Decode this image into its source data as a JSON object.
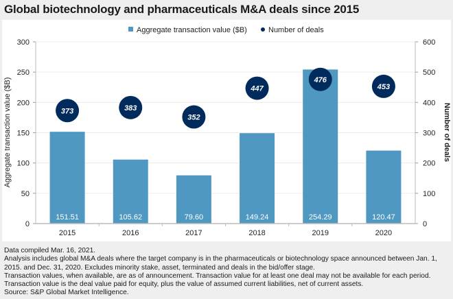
{
  "title": "Global biotechnology and pharmaceuticals M&A deals since 2015",
  "chart_data": {
    "type": "bar",
    "title": "Global biotechnology and pharmaceuticals M&A deals since 2015",
    "categories": [
      "2015",
      "2016",
      "2017",
      "2018",
      "2019",
      "2020"
    ],
    "series": [
      {
        "name": "Aggregate transaction value ($B)",
        "kind": "bar",
        "axis": "left",
        "color": "#4f98c2",
        "values": [
          151.51,
          105.62,
          79.6,
          149.24,
          254.29,
          120.47
        ],
        "labels": [
          "151.51",
          "105.62",
          "79.60",
          "149.24",
          "254.29",
          "120.47"
        ]
      },
      {
        "name": "Number of deals",
        "kind": "scatter",
        "axis": "right",
        "color": "#002b5c",
        "values": [
          373,
          383,
          352,
          447,
          476,
          453
        ],
        "labels": [
          "373",
          "383",
          "352",
          "447",
          "476",
          "453"
        ]
      }
    ],
    "ylabel": "Aggregate transaction value ($B)",
    "y2label": "Number of deals",
    "xlabel": "",
    "ylim": [
      0,
      300
    ],
    "y2lim": [
      0,
      600
    ],
    "yticks": [
      "0",
      "50",
      "100",
      "150",
      "200",
      "250",
      "300"
    ],
    "y2ticks": [
      "0",
      "100",
      "200",
      "300",
      "400",
      "500",
      "600"
    ],
    "grid": true,
    "legend": "top-center"
  },
  "notes": [
    "Data compiled Mar. 16, 2021.",
    "Analysis includes global M&A deals where the target company is in the pharmaceuticals or biotechnology space announced between Jan. 1,",
    "2015. and Dec. 31, 2020. Excludes minority stake, asset, terminated and deals in the bid/offer stage.",
    "Transaction values, when available, are as of announcement. Transaction value for at least one deal may not be available for each period.",
    "Transaction value is the deal value paid for equity, plus the value of assumed current liabilities, net of current assets.",
    "Source: S&P Global Market Intelligence."
  ]
}
